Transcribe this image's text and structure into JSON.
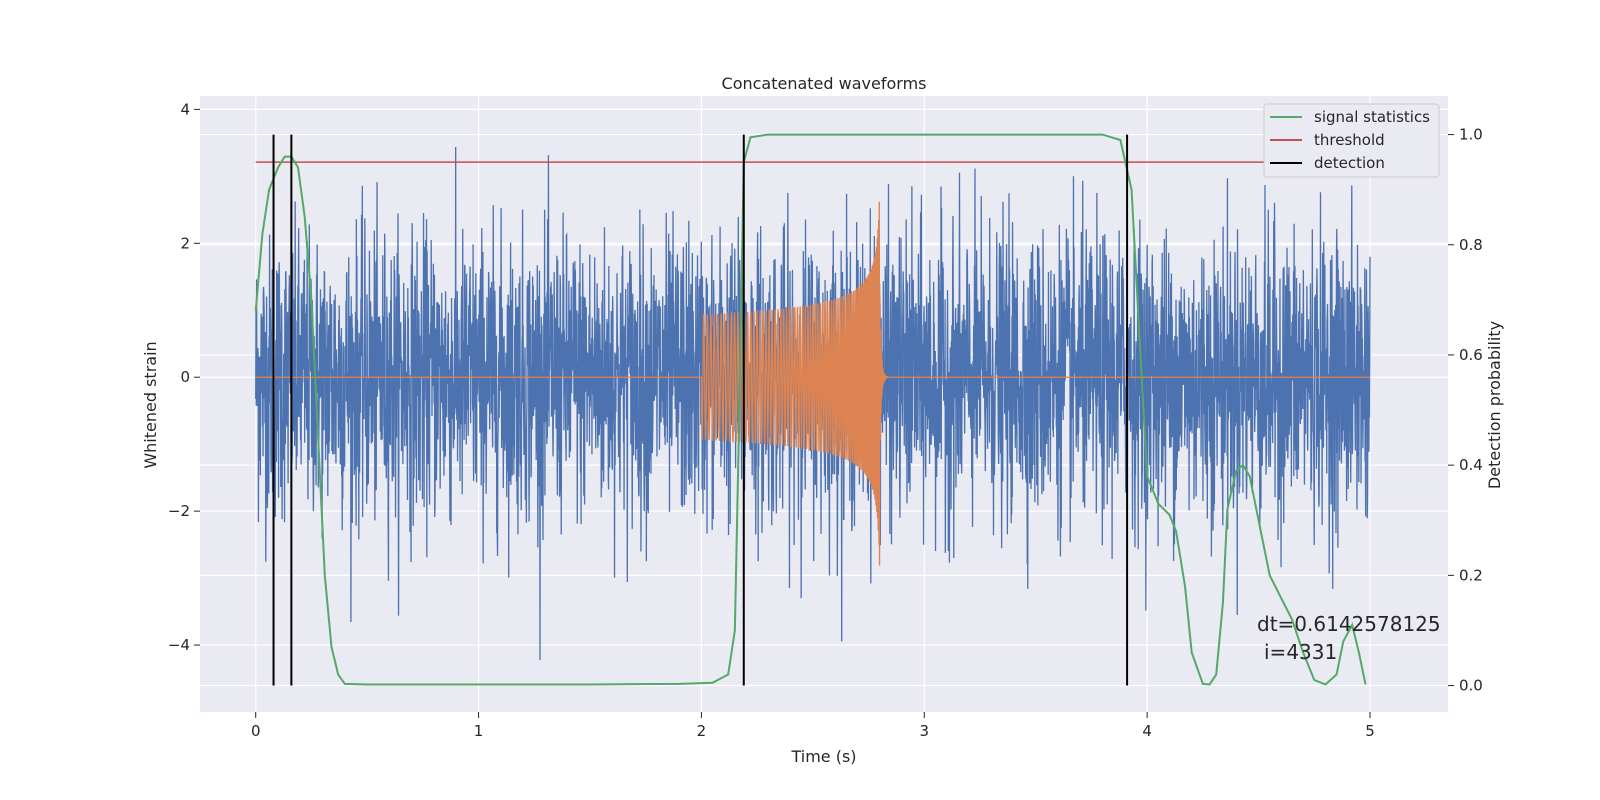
{
  "chart_data": {
    "type": "line",
    "title": "Concatenated waveforms",
    "xlabel": "Time (s)",
    "ylabel": "Whitened strain",
    "y2label": "Detection probability",
    "xlim": [
      -0.25,
      5.35
    ],
    "ylim": [
      -5.0,
      4.2
    ],
    "y2lim": [
      -0.048,
      1.07
    ],
    "x_ticks": [
      0,
      1,
      2,
      3,
      4,
      5
    ],
    "y_ticks": [
      -4,
      -2,
      0,
      2,
      4
    ],
    "y2_ticks": [
      0.0,
      0.2,
      0.4,
      0.6,
      0.8,
      1.0
    ],
    "y_tick_labels": [
      "−4",
      "−2",
      "0",
      "2",
      "4"
    ],
    "y2_tick_labels": [
      "0.0",
      "0.2",
      "0.4",
      "0.6",
      "0.8",
      "1.0"
    ],
    "grid": true,
    "legend_position": "top-right",
    "legend": [
      {
        "label": "signal statistics",
        "color": "#55a868"
      },
      {
        "label": "threshold",
        "color": "#c44e52"
      },
      {
        "label": "detection",
        "color": "#000000"
      }
    ],
    "colors": {
      "strain": "#4c72b0",
      "chirp": "#dd8452",
      "statistics": "#55a868",
      "threshold": "#c44e52",
      "detection": "#000000",
      "background": "#eaeaf2"
    },
    "strain_noise": {
      "x_range": [
        0,
        5
      ],
      "amplitude_envelope": 3.7,
      "samples": 4096
    },
    "chirp": {
      "x_range": [
        2.0,
        2.8
      ],
      "peak_amplitude": 3.0,
      "peak_time": 2.8
    },
    "threshold": 0.95,
    "detections": [
      0.08,
      0.16,
      2.19,
      3.91
    ],
    "signal_statistics": {
      "x": [
        0.0,
        0.03,
        0.06,
        0.1,
        0.13,
        0.16,
        0.19,
        0.22,
        0.25,
        0.28,
        0.31,
        0.34,
        0.37,
        0.4,
        0.5,
        1.0,
        1.5,
        1.9,
        2.05,
        2.12,
        2.15,
        2.17,
        2.19,
        2.22,
        2.3,
        2.6,
        3.0,
        3.5,
        3.8,
        3.88,
        3.93,
        3.97,
        4.0,
        4.05,
        4.1,
        4.13,
        4.17,
        4.2,
        4.25,
        4.28,
        4.31,
        4.34,
        4.36,
        4.4,
        4.43,
        4.46,
        4.5,
        4.55,
        4.6,
        4.65,
        4.7,
        4.75,
        4.8,
        4.85,
        4.88,
        4.92,
        4.95,
        4.98
      ],
      "y": [
        0.68,
        0.82,
        0.9,
        0.94,
        0.96,
        0.96,
        0.94,
        0.85,
        0.7,
        0.45,
        0.2,
        0.07,
        0.02,
        0.003,
        0.002,
        0.002,
        0.002,
        0.003,
        0.005,
        0.02,
        0.1,
        0.5,
        0.95,
        0.995,
        1.0,
        1.0,
        1.0,
        1.0,
        1.0,
        0.99,
        0.9,
        0.6,
        0.38,
        0.33,
        0.31,
        0.28,
        0.18,
        0.06,
        0.003,
        0.002,
        0.02,
        0.15,
        0.32,
        0.39,
        0.4,
        0.38,
        0.3,
        0.2,
        0.16,
        0.12,
        0.06,
        0.01,
        0.002,
        0.02,
        0.08,
        0.11,
        0.06,
        0.002
      ]
    },
    "annotations": {
      "dt_text": "dt=0.6142578125",
      "i_text": "i=4331"
    }
  }
}
